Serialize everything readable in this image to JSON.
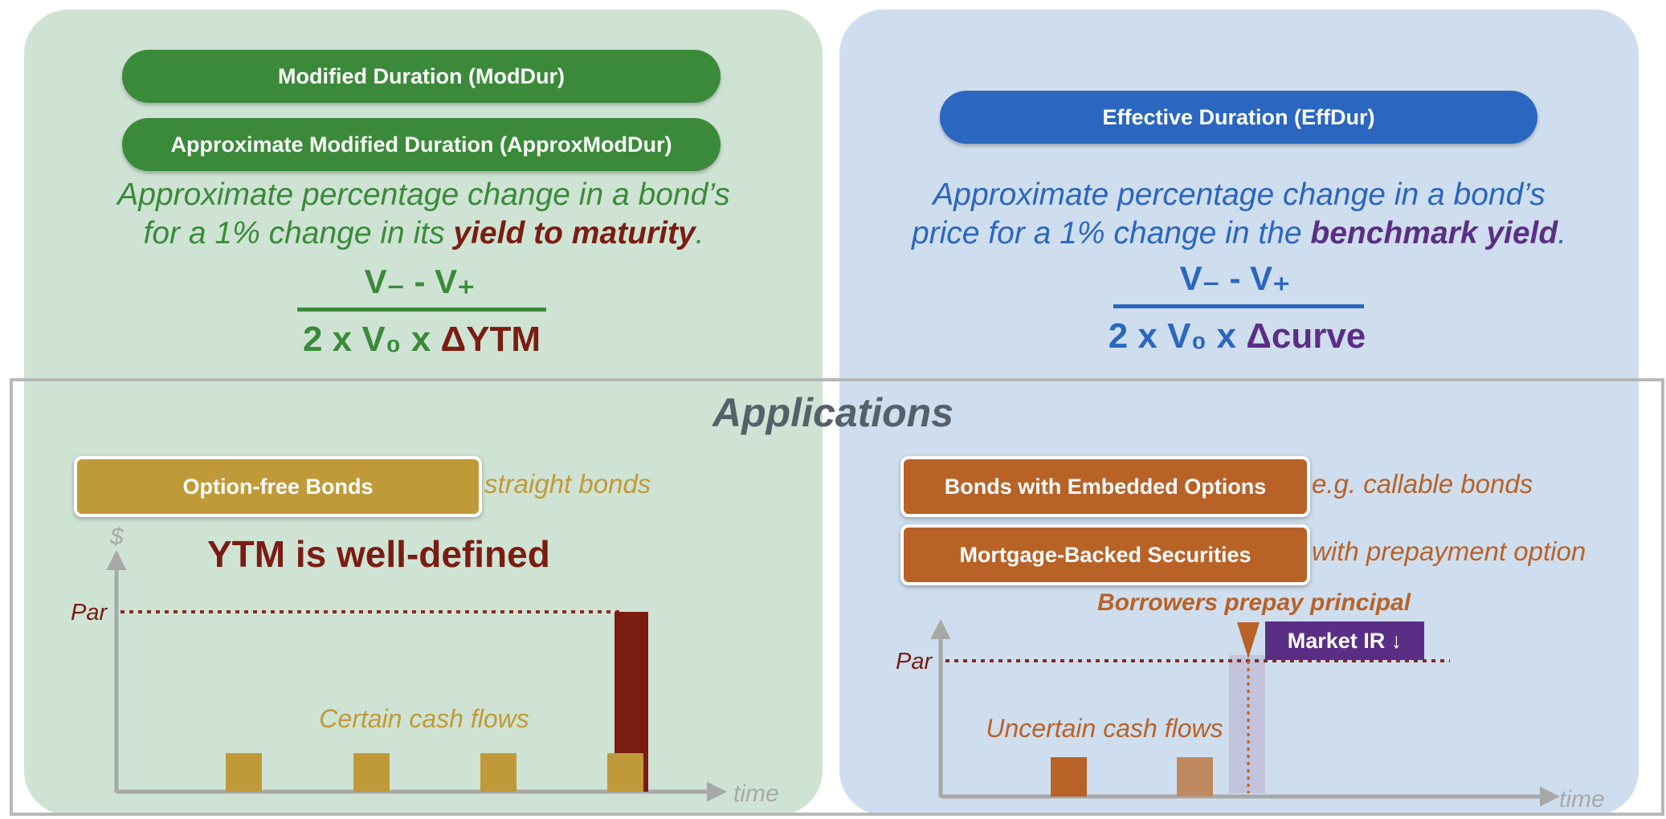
{
  "left": {
    "pill_1": "Modified Duration (ModDur)",
    "pill_2": "Approximate Modified Duration (ApproxModDur)",
    "desc_line1": "Approximate percentage change in a bond’s",
    "desc_line2_pre": "for a 1% change in its ",
    "desc_emph": "yield to maturity",
    "desc_post": ".",
    "numerator": "V₋ - V₊",
    "denominator_main": "2 x V₀ x ",
    "denominator_emph": "ΔYTM"
  },
  "right": {
    "pill": "Effective Duration (EffDur)",
    "desc_line1": "Approximate percentage change in a bond’s",
    "desc_line2_pre": "price for a 1% change in the ",
    "desc_emph": "benchmark yield",
    "desc_post": ".",
    "numerator": "V₋ - V₊",
    "denominator_main": "2 x V₀ x ",
    "denominator_emph": "Δcurve"
  },
  "applications": {
    "title": "Applications",
    "left_box": "Option-free Bonds",
    "left_note": "straight bonds",
    "left_headline": "YTM is well-defined",
    "right_box_1": "Bonds with Embedded Options",
    "right_note_1": "e.g. callable bonds",
    "right_box_2": "Mortgage-Backed Securities",
    "right_note_2": "with prepayment option"
  },
  "left_chart": {
    "y_label": "$",
    "x_label": "time",
    "par_label": "Par",
    "cash_flow_label": "Certain cash flows"
  },
  "right_chart": {
    "x_label": "time",
    "par_label": "Par",
    "cash_flow_label": "Uncertain cash flows",
    "prepay_label": "Borrowers prepay principal",
    "market_ir_label": "Market IR ↓"
  },
  "colors": {
    "green": "#3a8a3a",
    "blue": "#2b66c0",
    "maroon": "#7a1c12",
    "purple": "#5b2e86",
    "gold": "#c09a38",
    "orange": "#b86228"
  }
}
